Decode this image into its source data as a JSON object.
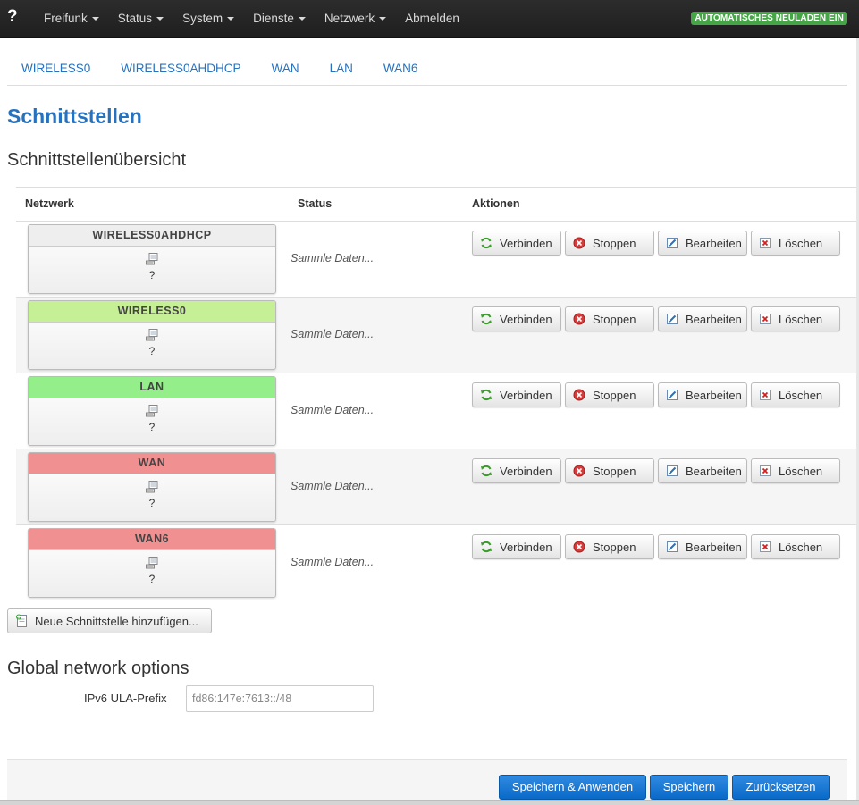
{
  "navbar": {
    "brand": "?",
    "items": [
      {
        "label": "Freifunk",
        "dropdown": true
      },
      {
        "label": "Status",
        "dropdown": true
      },
      {
        "label": "System",
        "dropdown": true
      },
      {
        "label": "Dienste",
        "dropdown": true
      },
      {
        "label": "Netzwerk",
        "dropdown": true
      },
      {
        "label": "Abmelden",
        "dropdown": false
      }
    ],
    "autoreload_label": "AUTOMATISCHES NEULADEN EIN"
  },
  "tabs": [
    "WIRELESS0",
    "WIRELESS0AHDHCP",
    "WAN",
    "LAN",
    "WAN6"
  ],
  "page_title": "Schnittstellen",
  "overview_title": "Schnittstellenübersicht",
  "table": {
    "headers": {
      "network": "Netzwerk",
      "status": "Status",
      "actions": "Aktionen"
    },
    "rows": [
      {
        "name": "WIRELESS0AHDHCP",
        "color": "#eeeeee",
        "device": "?",
        "status": "Sammle Daten..."
      },
      {
        "name": "WIRELESS0",
        "color": "#c5f095",
        "device": "?",
        "status": "Sammle Daten..."
      },
      {
        "name": "LAN",
        "color": "#94ee8a",
        "device": "?",
        "status": "Sammle Daten..."
      },
      {
        "name": "WAN",
        "color": "#f19090",
        "device": "?",
        "status": "Sammle Daten..."
      },
      {
        "name": "WAN6",
        "color": "#f19090",
        "device": "?",
        "status": "Sammle Daten..."
      }
    ],
    "action_labels": {
      "connect": "Verbinden",
      "stop": "Stoppen",
      "edit": "Bearbeiten",
      "delete": "Löschen"
    }
  },
  "add_interface_label": "Neue Schnittstelle hinzufügen...",
  "global": {
    "title": "Global network options",
    "ula_label": "IPv6 ULA-Prefix",
    "ula_value": "fd86:147e:7613::/48"
  },
  "footer": {
    "save_apply": "Speichern & Anwenden",
    "save": "Speichern",
    "reset": "Zurücksetzen"
  },
  "colors": {
    "accent": "#2672bf",
    "navbar": "#222222",
    "autoreload": "#46a546",
    "primary_button": "#1a7ad4"
  },
  "icons": {
    "connect": "refresh-icon",
    "stop": "stop-icon",
    "edit": "edit-icon",
    "delete": "delete-icon",
    "device": "network-device-icon",
    "add": "add-document-icon"
  }
}
